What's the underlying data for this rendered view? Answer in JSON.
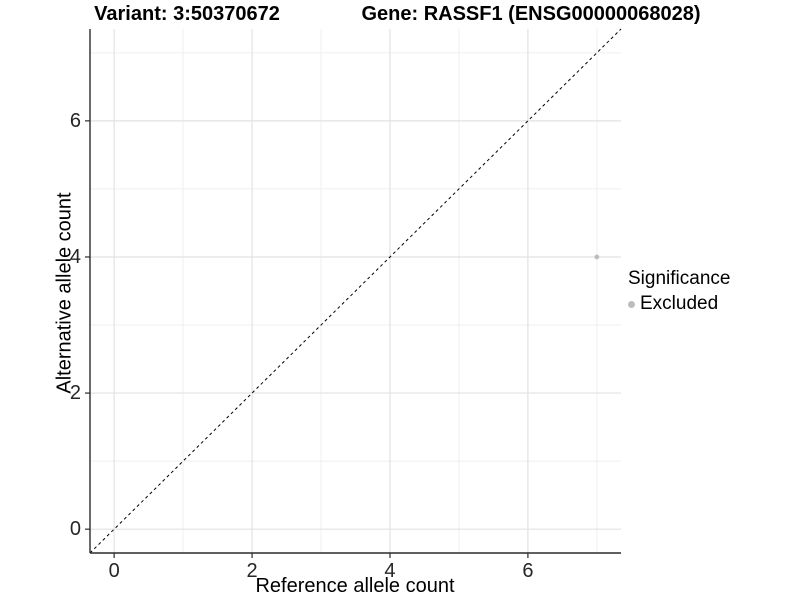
{
  "chart_data": {
    "type": "scatter",
    "title_left": "Variant: 3:50370672",
    "title_right": "Gene: RASSF1 (ENSG00000068028)",
    "xlabel": "Reference allele count",
    "ylabel": "Alternative allele count",
    "xlim": [
      -0.35,
      7.35
    ],
    "ylim": [
      -0.35,
      7.35
    ],
    "xticks": [
      0,
      2,
      4,
      6
    ],
    "yticks": [
      0,
      2,
      4,
      6
    ],
    "xminor": [
      1,
      3,
      5,
      7
    ],
    "yminor": [
      1,
      3,
      5,
      7
    ],
    "grid": true,
    "reference_line": {
      "type": "identity",
      "style": "dashed",
      "color": "#000000"
    },
    "series": [
      {
        "name": "Excluded",
        "color": "#bdbdbd",
        "points": [
          {
            "x": 7,
            "y": 4
          }
        ]
      }
    ],
    "legend": {
      "title": "Significance",
      "position": "right",
      "items": [
        {
          "label": "Excluded",
          "color": "#bdbdbd"
        }
      ]
    },
    "colors": {
      "axis": "#2b2b2b",
      "tick_text": "#262626",
      "grid_major": "#e2e2e2",
      "grid_minor": "#efefef",
      "background": "#ffffff"
    }
  }
}
